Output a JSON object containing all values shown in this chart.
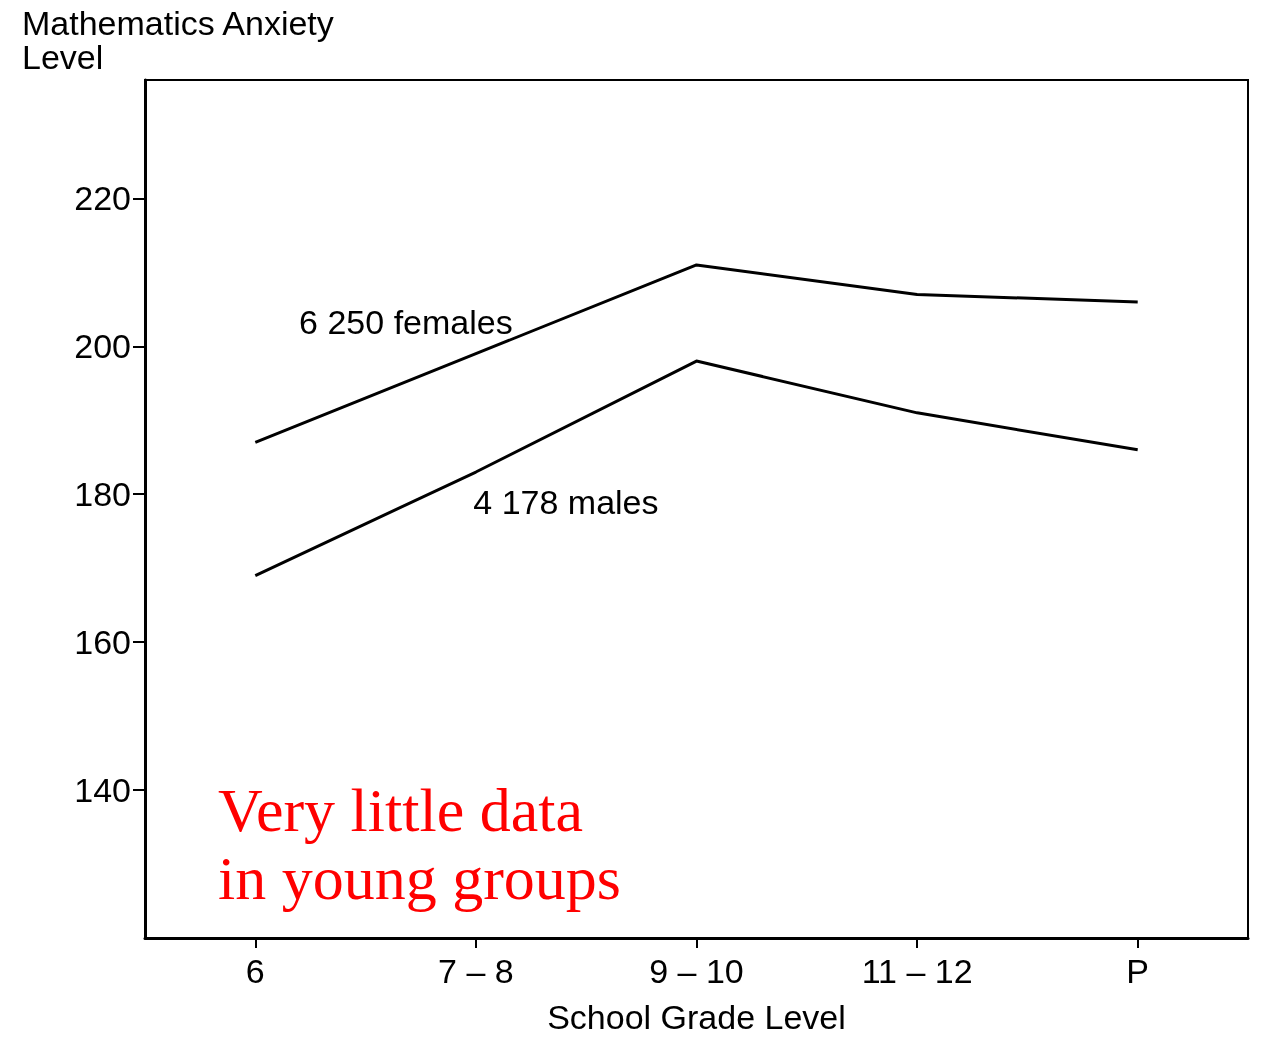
{
  "chart_data": {
    "type": "line",
    "ylabel": "Mathematics Anxiety\nLevel",
    "xlabel": "School Grade Level",
    "categories": [
      "6",
      "7 – 8",
      "9 – 10",
      "11 – 12",
      "P"
    ],
    "series": [
      {
        "name": "6 250 females",
        "color": "#000000",
        "values": [
          187,
          199,
          211,
          207,
          206
        ]
      },
      {
        "name": "4 178 males",
        "color": "#000000",
        "values": [
          169,
          183,
          198,
          191,
          186
        ]
      }
    ],
    "ylim": [
      120,
      236
    ],
    "yticks": [
      140,
      160,
      180,
      200,
      220
    ],
    "annotations": [
      "Very little data\nin young groups"
    ],
    "marker": "none",
    "line_style": "solid",
    "grid": false,
    "legend": false
  }
}
